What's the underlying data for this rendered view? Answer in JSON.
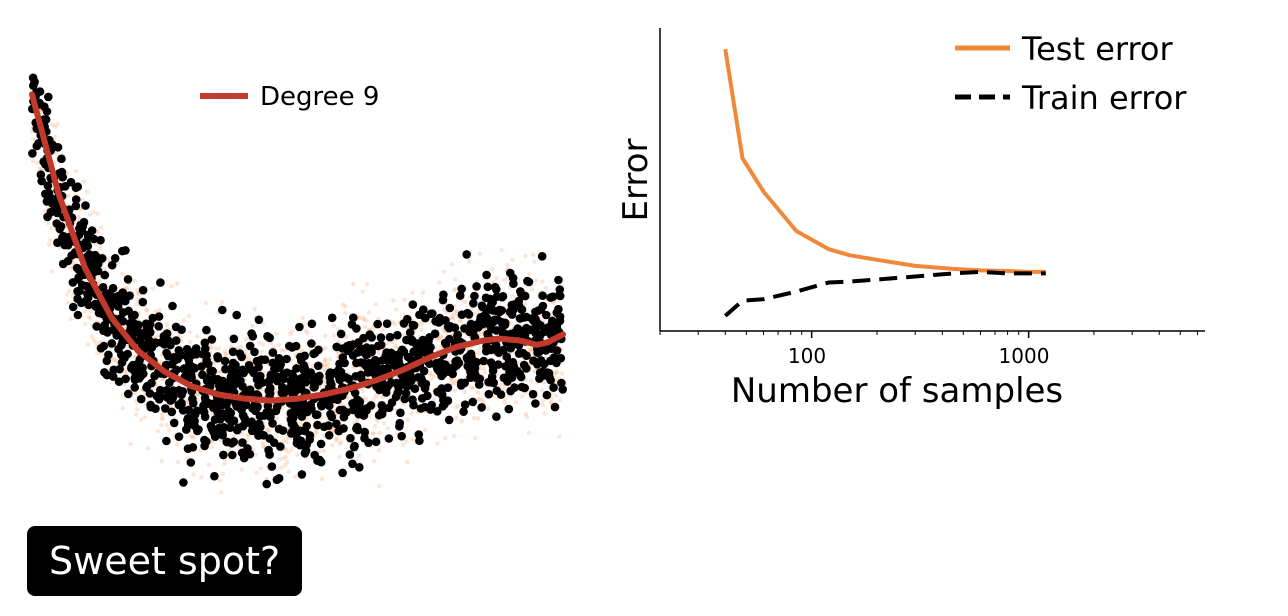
{
  "chart_data": [
    {
      "type": "scatter",
      "legend": {
        "entries": [
          {
            "label": "Degree 9",
            "color": "#c0392b"
          }
        ],
        "placement": "top-center"
      },
      "colors": {
        "points": "#000000",
        "background_points": "#f5b58a",
        "fit_line": "#c0392b"
      },
      "xlim": [
        0,
        1
      ],
      "ylim": [
        0,
        1
      ],
      "fit_curve": {
        "x": [
          0.0,
          0.05,
          0.1,
          0.15,
          0.2,
          0.25,
          0.3,
          0.35,
          0.4,
          0.45,
          0.5,
          0.55,
          0.6,
          0.65,
          0.7,
          0.75,
          0.8,
          0.85,
          0.88,
          0.92,
          0.95,
          0.97,
          1.0
        ],
        "y": [
          0.98,
          0.74,
          0.56,
          0.44,
          0.36,
          0.31,
          0.275,
          0.255,
          0.245,
          0.24,
          0.245,
          0.255,
          0.27,
          0.29,
          0.315,
          0.345,
          0.37,
          0.385,
          0.39,
          0.385,
          0.375,
          0.38,
          0.4
        ]
      }
    },
    {
      "type": "line",
      "xlabel": "Number of samples",
      "ylabel": "Error",
      "x_scale": "log",
      "xlim": [
        20,
        6500
      ],
      "ylim": [
        0,
        1
      ],
      "x_ticks": [
        100,
        1000
      ],
      "x_tick_labels": [
        "100",
        "1000"
      ],
      "legend": {
        "placement": "top-right"
      },
      "series": [
        {
          "name": "Test error",
          "color": "#f0883a",
          "style": "solid",
          "x": [
            40,
            48,
            60,
            85,
            120,
            150,
            200,
            300,
            450,
            600,
            800,
            1000,
            1200
          ],
          "y": [
            0.93,
            0.57,
            0.46,
            0.33,
            0.27,
            0.25,
            0.235,
            0.215,
            0.205,
            0.2,
            0.198,
            0.195,
            0.195
          ]
        },
        {
          "name": "Train error",
          "color": "#000000",
          "style": "dashed",
          "x": [
            40,
            48,
            60,
            85,
            120,
            150,
            200,
            300,
            450,
            600,
            800,
            1000,
            1200
          ],
          "y": [
            0.05,
            0.1,
            0.105,
            0.13,
            0.16,
            0.163,
            0.17,
            0.18,
            0.19,
            0.195,
            0.19,
            0.19,
            0.19
          ]
        }
      ]
    }
  ],
  "badge": {
    "text": "Sweet spot?"
  }
}
